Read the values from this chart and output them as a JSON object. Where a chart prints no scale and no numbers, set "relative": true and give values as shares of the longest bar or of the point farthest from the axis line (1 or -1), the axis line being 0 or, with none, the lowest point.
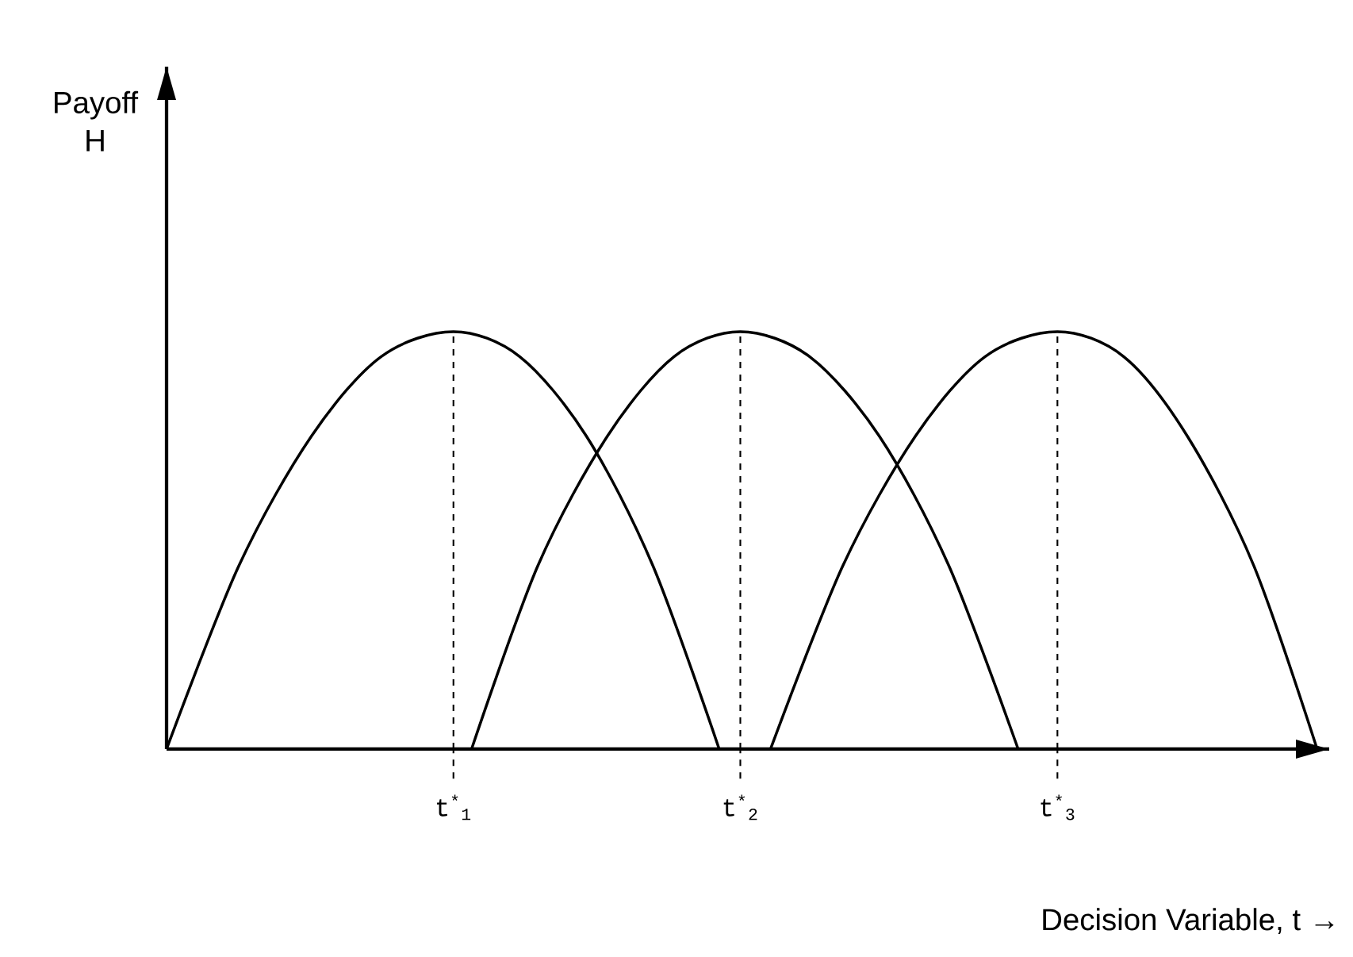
{
  "chart_data": {
    "type": "line",
    "relative": true,
    "xlabel": "Decision Variable, t →",
    "annotations": [
      "Payoff H"
    ],
    "line_style": "solid",
    "marker": "none",
    "grid": false,
    "tick_labels": "x",
    "xlim": [
      0,
      3.85
    ],
    "xticks": [
      {
        "value": 0.95,
        "label": "t$^{*}$$_{1}$"
      },
      {
        "value": 1.9,
        "label": "t$^{*}$$_{2}$"
      },
      {
        "value": 2.95,
        "label": "t$^{*}$$_{3}$"
      }
    ],
    "ref_lines": [
      {
        "axis": "x",
        "value": 0.95,
        "line_style": "dashed"
      },
      {
        "axis": "x",
        "value": 1.9,
        "line_style": "dashed"
      },
      {
        "axis": "x",
        "value": 2.95,
        "line_style": "dashed"
      }
    ],
    "series": [
      {
        "color": "#000000",
        "x": [
          0,
          0.24,
          0.48,
          0.71,
          0.95,
          1.17,
          1.39,
          1.61,
          1.83
        ],
        "values": [
          0,
          0.44,
          0.75,
          0.94,
          1,
          0.94,
          0.75,
          0.44,
          0
        ]
      },
      {
        "color": "#000000",
        "x": [
          1.01,
          1.23,
          1.46,
          1.68,
          1.9,
          2.13,
          2.36,
          2.59,
          2.82
        ],
        "values": [
          0,
          0.44,
          0.75,
          0.94,
          1,
          0.94,
          0.75,
          0.44,
          0
        ]
      },
      {
        "color": "#000000",
        "x": [
          2.0,
          2.24,
          2.48,
          2.71,
          2.95,
          3.17,
          3.38,
          3.6,
          3.81
        ],
        "values": [
          0,
          0.44,
          0.75,
          0.94,
          1,
          0.94,
          0.75,
          0.44,
          0
        ]
      }
    ]
  }
}
